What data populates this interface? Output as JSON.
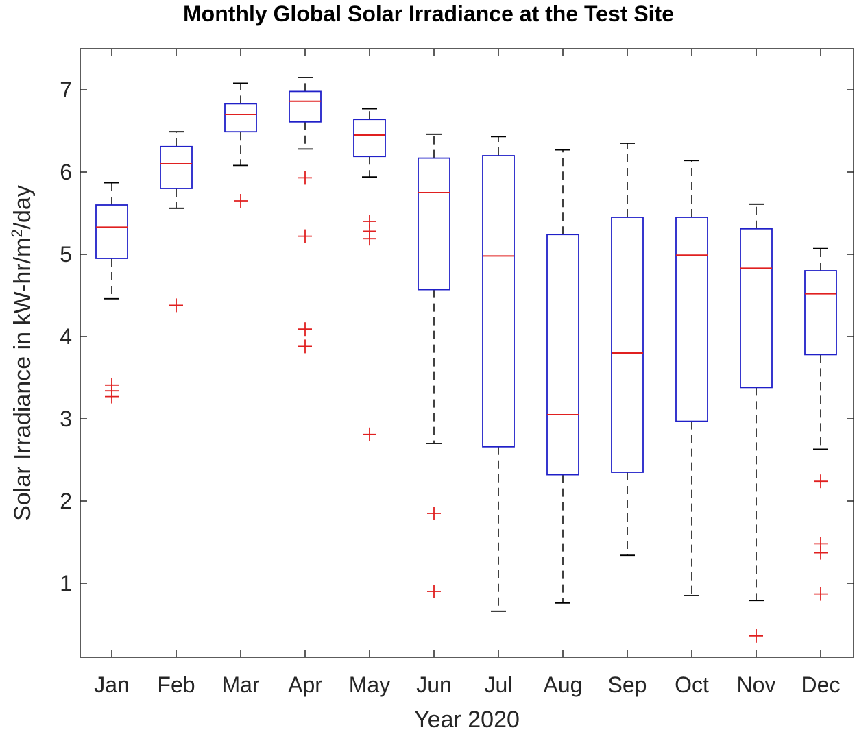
{
  "chart_data": {
    "type": "boxplot",
    "title": "Monthly Global Solar Irradiance at the Test Site",
    "xlabel": "Year 2020",
    "ylabel_main": "Solar Irradiance in kW-hr/m",
    "ylabel_sup": "2",
    "ylabel_tail": "/day",
    "ylim": [
      0.1,
      7.5
    ],
    "yticks": [
      1,
      2,
      3,
      4,
      5,
      6,
      7
    ],
    "grid": false,
    "colors": {
      "box": "#2020c8",
      "median": "#e02020",
      "whisker": "#000000",
      "outlier": "#e02020",
      "axes": "#262626"
    },
    "categories": [
      "Jan",
      "Feb",
      "Mar",
      "Apr",
      "May",
      "Jun",
      "Jul",
      "Aug",
      "Sep",
      "Oct",
      "Nov",
      "Dec"
    ],
    "boxes": [
      {
        "month": "Jan",
        "whisker_low": 4.46,
        "q1": 4.95,
        "median": 5.33,
        "q3": 5.6,
        "whisker_high": 5.87,
        "outliers": [
          3.41,
          3.34,
          3.27
        ]
      },
      {
        "month": "Feb",
        "whisker_low": 5.56,
        "q1": 5.8,
        "median": 6.1,
        "q3": 6.31,
        "whisker_high": 6.49,
        "outliers": [
          4.38
        ]
      },
      {
        "month": "Mar",
        "whisker_low": 6.08,
        "q1": 6.49,
        "median": 6.7,
        "q3": 6.83,
        "whisker_high": 7.08,
        "outliers": [
          5.65
        ]
      },
      {
        "month": "Apr",
        "whisker_low": 6.28,
        "q1": 6.61,
        "median": 6.86,
        "q3": 6.98,
        "whisker_high": 7.15,
        "outliers": [
          5.93,
          5.22,
          4.09,
          3.88
        ]
      },
      {
        "month": "May",
        "whisker_low": 5.94,
        "q1": 6.19,
        "median": 6.45,
        "q3": 6.64,
        "whisker_high": 6.77,
        "outliers": [
          5.4,
          5.28,
          5.19,
          2.81
        ]
      },
      {
        "month": "Jun",
        "whisker_low": 2.7,
        "q1": 4.57,
        "median": 5.75,
        "q3": 6.17,
        "whisker_high": 6.46,
        "outliers": [
          1.85,
          0.9
        ]
      },
      {
        "month": "Jul",
        "whisker_low": 0.66,
        "q1": 2.66,
        "median": 4.98,
        "q3": 6.2,
        "whisker_high": 6.43,
        "outliers": []
      },
      {
        "month": "Aug",
        "whisker_low": 0.76,
        "q1": 2.32,
        "median": 3.05,
        "q3": 5.24,
        "whisker_high": 6.27,
        "outliers": []
      },
      {
        "month": "Sep",
        "whisker_low": 1.34,
        "q1": 2.35,
        "median": 3.8,
        "q3": 5.45,
        "whisker_high": 6.35,
        "outliers": []
      },
      {
        "month": "Oct",
        "whisker_low": 0.85,
        "q1": 2.97,
        "median": 4.99,
        "q3": 5.45,
        "whisker_high": 6.14,
        "outliers": []
      },
      {
        "month": "Nov",
        "whisker_low": 0.79,
        "q1": 3.38,
        "median": 4.83,
        "q3": 5.31,
        "whisker_high": 5.61,
        "outliers": [
          0.36
        ]
      },
      {
        "month": "Dec",
        "whisker_low": 2.63,
        "q1": 3.78,
        "median": 4.52,
        "q3": 4.8,
        "whisker_high": 5.07,
        "outliers": [
          2.24,
          1.48,
          1.37,
          0.87
        ]
      }
    ]
  }
}
